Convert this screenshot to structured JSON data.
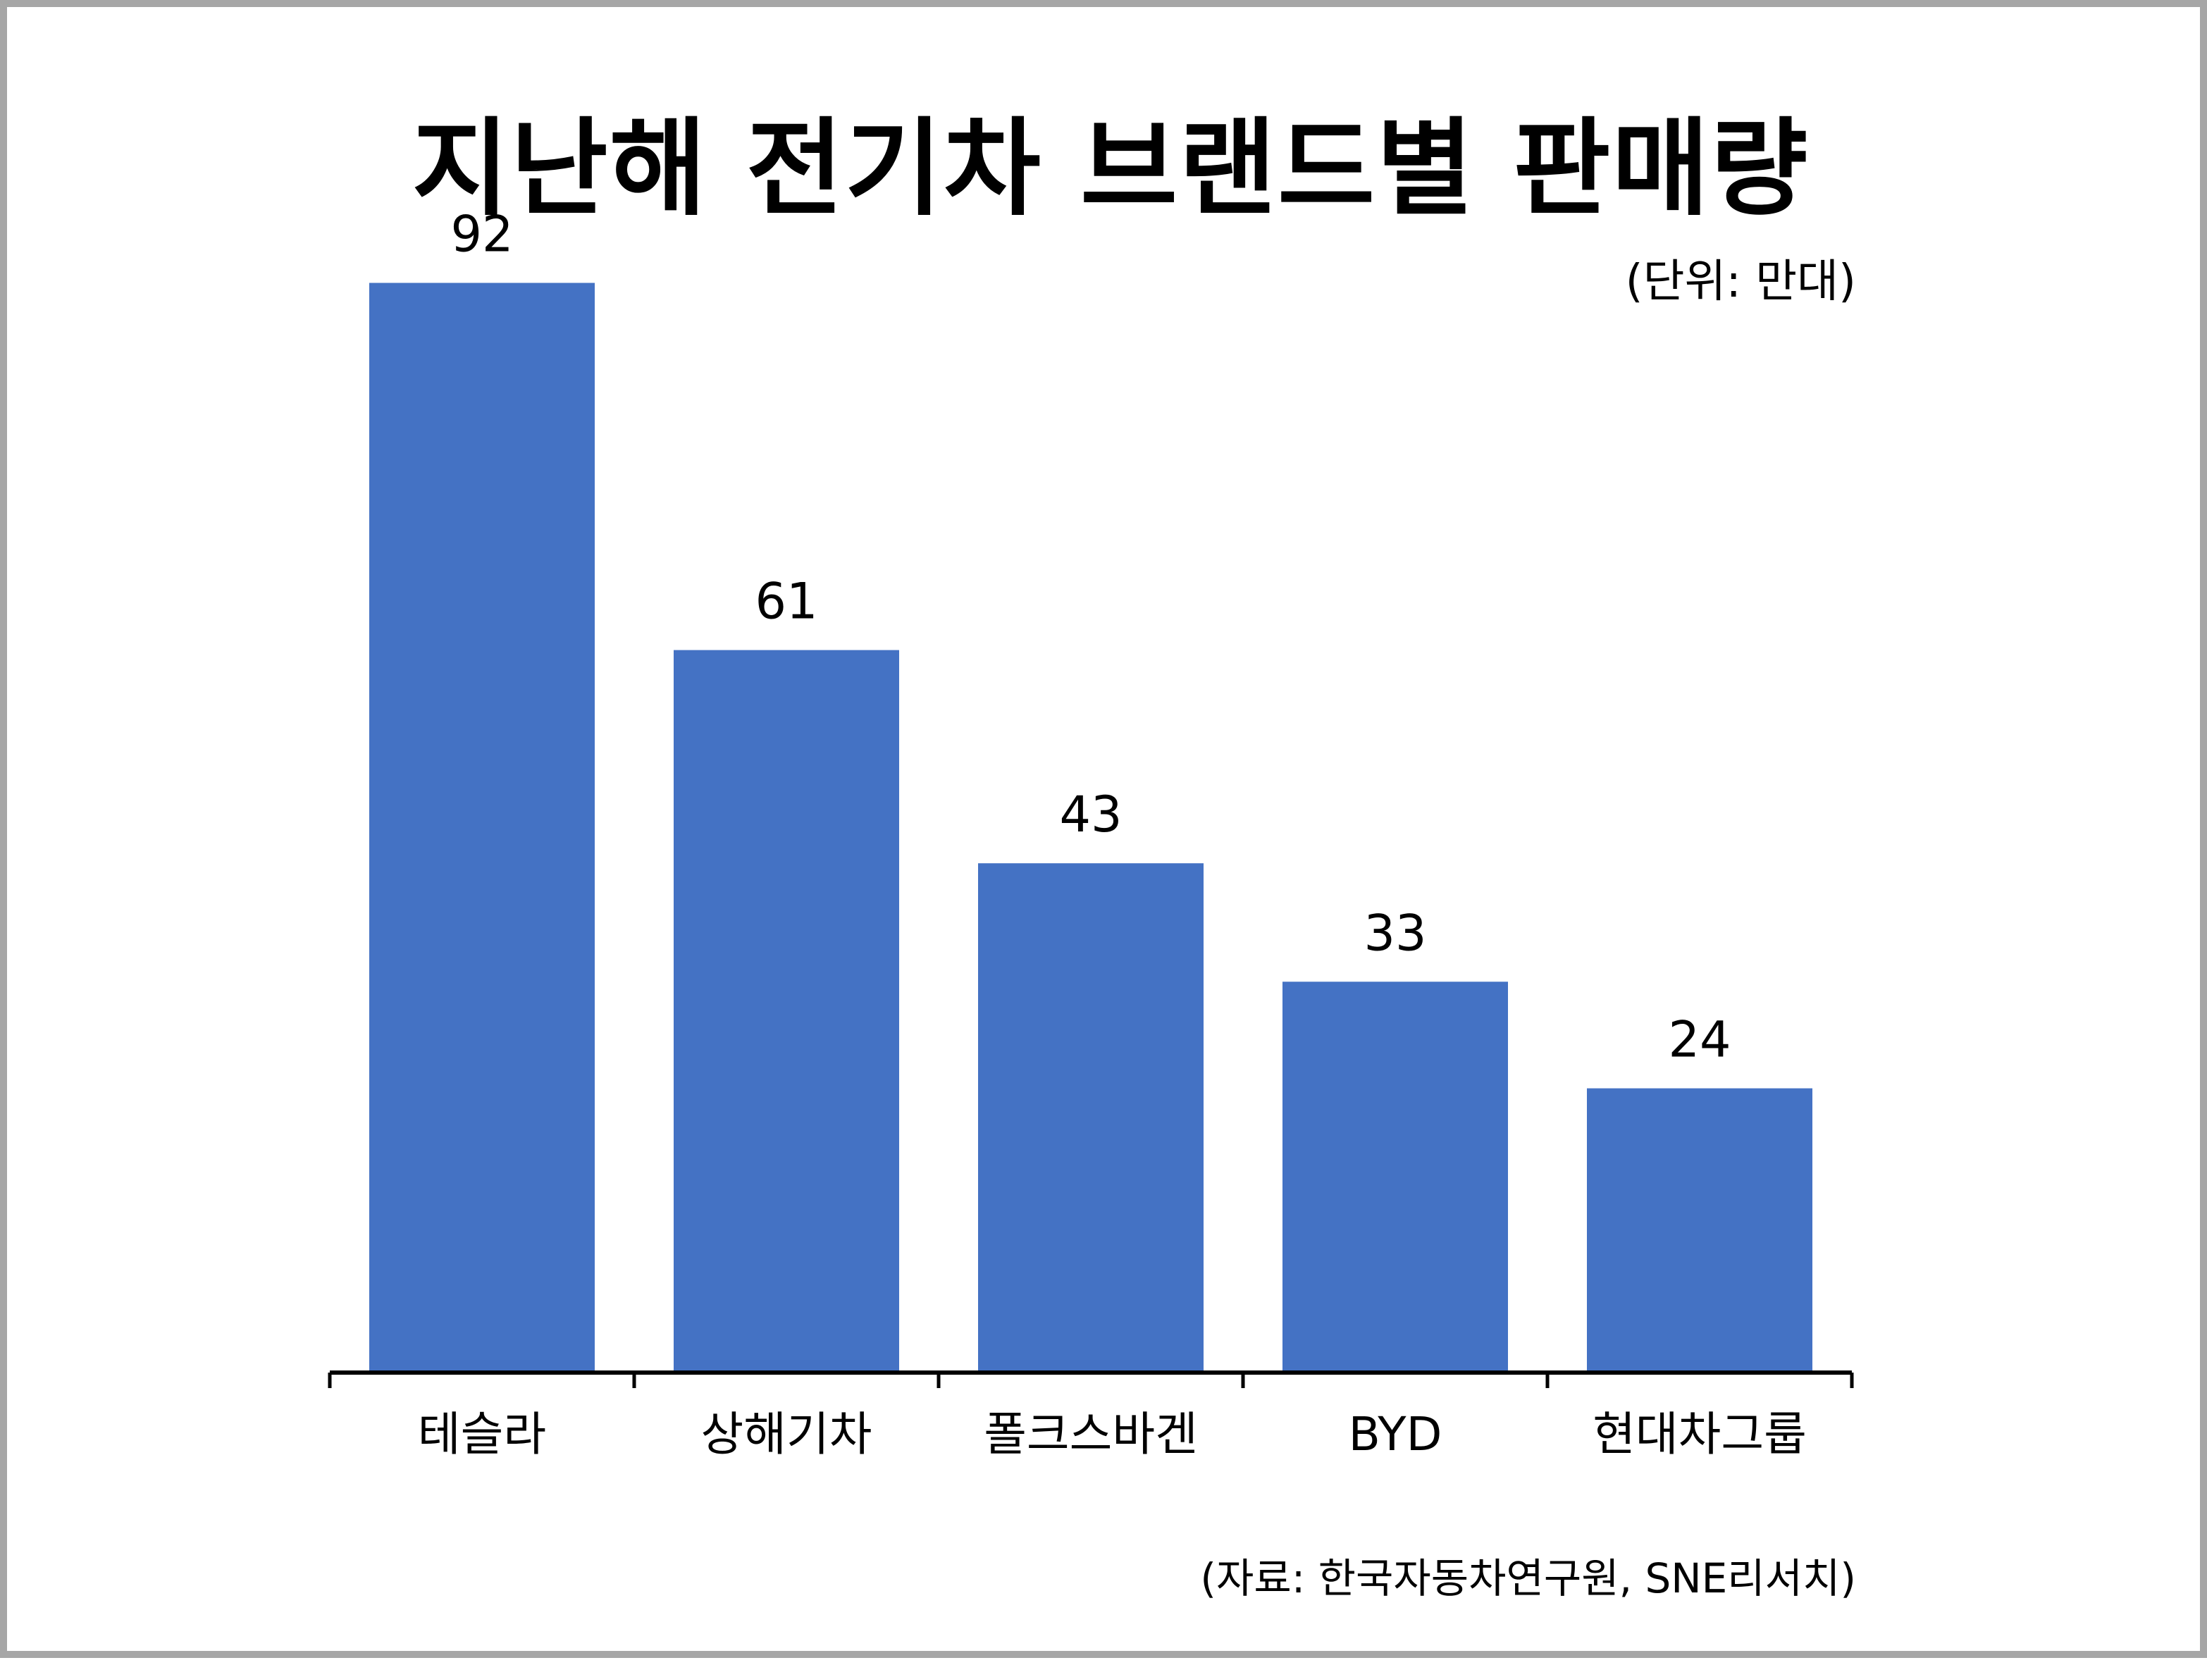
{
  "chart_data": {
    "type": "bar",
    "title": "지난해 전기차 브랜드별 판매량",
    "unit_note": "(단위: 만대)",
    "source_note": "(자료: 한국자동차연구원, SNE리서치)",
    "categories": [
      "테슬라",
      "상해기차",
      "폴크스바겐",
      "BYD",
      "현대차그룹"
    ],
    "values": [
      92,
      61,
      43,
      33,
      24
    ],
    "xlabel": "",
    "ylabel": "",
    "ylim": [
      0,
      100
    ],
    "grid": false,
    "legend": "none"
  },
  "colors": {
    "bar": "#4472c4",
    "axis": "#000000",
    "frame_border": "#a6a6a6",
    "background": "#ffffff"
  }
}
